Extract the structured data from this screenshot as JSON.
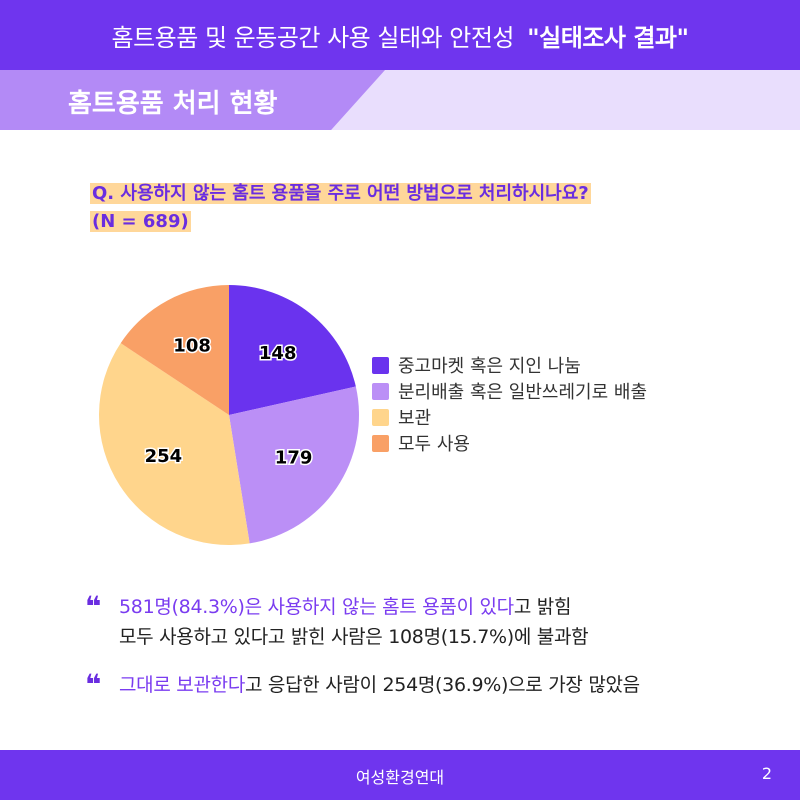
{
  "header": {
    "title_main": "홈트용품 및 운동공간 사용 실태와 안전성",
    "title_bold": "\"실태조사 결과\""
  },
  "section": {
    "title": "홈트용품 처리 현황"
  },
  "question": {
    "line1": "Q. 사용하지 않는 홈트 용품을 주로 어떤 방법으로 처리하시나요?",
    "line2": "(N = 689)"
  },
  "chart_data": {
    "type": "pie",
    "title": "",
    "slices": [
      {
        "label": "중고마켓 혹은 지인 나눔",
        "value": 148,
        "color": "#6a33ee"
      },
      {
        "label": "분리배출 혹은 일반쓰레기로 배출",
        "value": 179,
        "color": "#bb8ff6"
      },
      {
        "label": "보관",
        "value": 254,
        "color": "#ffd58c"
      },
      {
        "label": "모두 사용",
        "value": 108,
        "color": "#f9a066"
      }
    ],
    "legend_position": "right"
  },
  "notes": [
    {
      "highlight": "581명(84.3%)은 사용하지 않는 홈트 용품이 있다",
      "rest": "고 밝힘",
      "line2": "모두 사용하고 있다고 밝힌 사람은 108명(15.7%)에 불과함"
    },
    {
      "highlight": "그대로 보관한다",
      "rest": "고 응답한 사람이 254명(36.9%)으로 가장 많았음"
    }
  ],
  "quote_mark": "❝",
  "footer": {
    "org": "여성환경연대",
    "page": "2"
  }
}
